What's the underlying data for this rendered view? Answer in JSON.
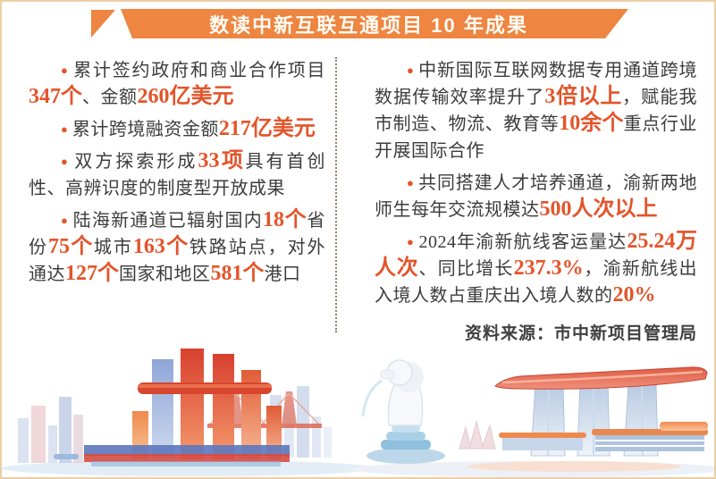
{
  "banner": {
    "title": "数读中新互联互通项目 10 年成果"
  },
  "ui": {
    "bullet": "●"
  },
  "facts": {
    "left": [
      {
        "segments": [
          {
            "t": "累计签约政府和商业合作项目"
          },
          {
            "t": "347个",
            "h": true
          },
          {
            "t": "、金额"
          },
          {
            "t": "260亿美元",
            "h": true
          }
        ]
      },
      {
        "segments": [
          {
            "t": "累计跨境融资金额"
          },
          {
            "t": "217亿美元",
            "h": true
          }
        ]
      },
      {
        "segments": [
          {
            "t": "双方探索形成"
          },
          {
            "t": "33项",
            "h": true
          },
          {
            "t": "具有首创性、高辨识度的制度型开放成果"
          }
        ]
      },
      {
        "segments": [
          {
            "t": "陆海新通道已辐射国内"
          },
          {
            "t": "18个",
            "h": true
          },
          {
            "t": "省份"
          },
          {
            "t": "75个",
            "h": true
          },
          {
            "t": "城市"
          },
          {
            "t": "163个",
            "h": true
          },
          {
            "t": "铁路站点，对外通达"
          },
          {
            "t": "127个",
            "h": true
          },
          {
            "t": "国家和地区"
          },
          {
            "t": "581个",
            "h": true
          },
          {
            "t": "港口"
          }
        ]
      }
    ],
    "right": [
      {
        "segments": [
          {
            "t": "中新国际互联网数据专用通道跨境数据传输效率提升了"
          },
          {
            "t": "3倍以上",
            "h": true
          },
          {
            "t": "，赋能我市制造、物流、教育等"
          },
          {
            "t": "10余个",
            "h": true
          },
          {
            "t": "重点行业开展国际合作"
          }
        ]
      },
      {
        "segments": [
          {
            "t": "共同搭建人才培养通道，渝新两地师生每年交流规模达"
          },
          {
            "t": "500人次以上",
            "h": true
          }
        ]
      },
      {
        "segments": [
          {
            "t": "2024年渝新航线客运量达"
          },
          {
            "t": "25.24万人次",
            "h": true
          },
          {
            "t": "、同比增长"
          },
          {
            "t": "237.3%",
            "h": true
          },
          {
            "t": "，渝新航线出入境人数占重庆出入境人数的"
          },
          {
            "t": "20%",
            "h": true
          }
        ]
      }
    ]
  },
  "source": {
    "label": "资料来源：市中新项目管理局"
  },
  "colors": {
    "banner_orange": "#ee8540",
    "highlight_orange_red": "#e4542a",
    "body_text": "#3c3c3c",
    "page_border": "#eccfa6",
    "divider_dots": "#93826f"
  },
  "icons": {
    "bullet": "●",
    "left_illustration": "chongqing-raffles-city-and-bridge-skyline",
    "right_illustration": "singapore-merlion-and-marina-bay-sands-skyline"
  }
}
